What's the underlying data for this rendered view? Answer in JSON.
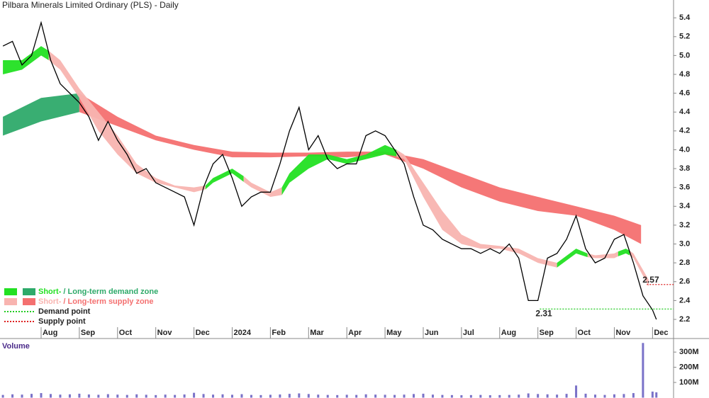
{
  "chart_data": {
    "type": "line",
    "title": "Pilbara Minerals Limited Ordinary (PLS) - Daily",
    "xlim": [
      -0.076,
      17.55
    ],
    "xticks": [
      {
        "value": 1,
        "label": "Aug"
      },
      {
        "value": 2,
        "label": "Sep"
      },
      {
        "value": 3,
        "label": "Oct"
      },
      {
        "value": 4,
        "label": "Nov"
      },
      {
        "value": 5,
        "label": "Dec"
      },
      {
        "value": 6,
        "label": "2024"
      },
      {
        "value": 7,
        "label": "Feb"
      },
      {
        "value": 8,
        "label": "Mar"
      },
      {
        "value": 9,
        "label": "Apr"
      },
      {
        "value": 10,
        "label": "May"
      },
      {
        "value": 11,
        "label": "Jun"
      },
      {
        "value": 12,
        "label": "Jul"
      },
      {
        "value": 13,
        "label": "Aug"
      },
      {
        "value": 14,
        "label": "Sep"
      },
      {
        "value": 15,
        "label": "Oct"
      },
      {
        "value": 16,
        "label": "Nov"
      },
      {
        "value": 17,
        "label": "Dec"
      }
    ],
    "ylim": [
      1.997,
      5.589
    ],
    "yticks": [
      2.2,
      2.4,
      2.6,
      2.8,
      {
        "value": 3,
        "label": "3.0"
      },
      3.2,
      3.4,
      3.6,
      3.8,
      {
        "value": 4,
        "label": "4.0"
      },
      4.2,
      4.4,
      4.6,
      4.8,
      {
        "value": 5,
        "label": "5.0"
      },
      5.2,
      5.4
    ],
    "color": "#000000",
    "x": [
      0,
      0.25,
      0.5,
      0.75,
      1,
      1.25,
      1.5,
      1.75,
      2,
      2.25,
      2.5,
      2.75,
      3,
      3.25,
      3.5,
      3.75,
      4,
      4.25,
      4.5,
      4.75,
      5,
      5.25,
      5.5,
      5.75,
      6,
      6.25,
      6.5,
      6.75,
      7,
      7.25,
      7.5,
      7.75,
      8,
      8.25,
      8.5,
      8.75,
      9,
      9.25,
      9.5,
      9.75,
      10,
      10.25,
      10.5,
      10.75,
      11,
      11.25,
      11.5,
      11.75,
      12,
      12.25,
      12.5,
      12.75,
      13,
      13.25,
      13.5,
      13.75,
      14,
      14.25,
      14.5,
      14.75,
      15,
      15.25,
      15.5,
      15.75,
      16,
      16.25,
      16.5,
      16.75,
      17,
      17.1
    ],
    "close": [
      5.1,
      5.15,
      4.9,
      5.0,
      5.35,
      4.95,
      4.7,
      4.6,
      4.5,
      4.35,
      4.1,
      4.3,
      4.1,
      3.95,
      3.75,
      3.8,
      3.65,
      3.6,
      3.55,
      3.5,
      3.2,
      3.6,
      3.85,
      3.95,
      3.7,
      3.4,
      3.5,
      3.55,
      3.55,
      3.85,
      4.2,
      4.45,
      4.0,
      4.15,
      3.9,
      3.8,
      3.85,
      3.85,
      4.15,
      4.2,
      4.15,
      4.0,
      3.85,
      3.5,
      3.2,
      3.15,
      3.05,
      3.0,
      2.95,
      2.95,
      2.9,
      2.95,
      2.9,
      3.0,
      2.85,
      2.4,
      2.4,
      2.85,
      2.9,
      3.05,
      3.3,
      2.95,
      2.8,
      2.85,
      3.05,
      3.1,
      2.8,
      2.45,
      2.3,
      2.2
    ],
    "zones": [
      {
        "color": "#2eaa6a",
        "x": [
          0,
          1,
          2
        ],
        "upper": [
          4.35,
          4.55,
          4.6
        ],
        "lower": [
          4.15,
          4.3,
          4.4
        ]
      },
      {
        "color": "#f47070",
        "x": [
          2,
          3,
          4,
          5,
          6,
          7,
          8,
          9,
          10,
          11,
          12,
          13,
          14,
          15,
          16,
          16.7
        ],
        "upper": [
          4.6,
          4.35,
          4.15,
          4.05,
          3.98,
          3.97,
          3.97,
          3.98,
          3.98,
          3.9,
          3.75,
          3.6,
          3.5,
          3.4,
          3.3,
          3.2
        ],
        "lower": [
          4.4,
          4.25,
          4.1,
          4.0,
          3.92,
          3.92,
          3.93,
          3.92,
          3.95,
          3.8,
          3.6,
          3.45,
          3.35,
          3.3,
          3.15,
          3.0
        ]
      },
      {
        "color": "#22e022",
        "x": [
          0,
          0.5,
          1,
          1.2
        ],
        "upper": [
          4.95,
          4.95,
          5.1,
          5.05
        ],
        "lower": [
          4.8,
          4.85,
          5.0,
          4.95
        ]
      },
      {
        "color": "#f8b4b0",
        "x": [
          1.2,
          1.5,
          2,
          2.5,
          3,
          3.5,
          4,
          4.5,
          5,
          5.3
        ],
        "upper": [
          5.05,
          4.95,
          4.65,
          4.4,
          4.15,
          3.85,
          3.7,
          3.62,
          3.6,
          3.62
        ],
        "lower": [
          4.95,
          4.85,
          4.55,
          4.2,
          3.95,
          3.75,
          3.65,
          3.6,
          3.55,
          3.58
        ]
      },
      {
        "color": "#22e022",
        "x": [
          5.3,
          5.5,
          6,
          6.3
        ],
        "upper": [
          3.62,
          3.7,
          3.8,
          3.72
        ],
        "lower": [
          3.58,
          3.65,
          3.75,
          3.66
        ]
      },
      {
        "color": "#f8b4b0",
        "x": [
          6.3,
          6.5,
          7,
          7.3
        ],
        "upper": [
          3.72,
          3.65,
          3.55,
          3.6
        ],
        "lower": [
          3.66,
          3.6,
          3.5,
          3.52
        ]
      },
      {
        "color": "#22e022",
        "x": [
          7.3,
          7.5,
          8,
          8.5,
          9,
          9.5,
          10,
          10.3
        ],
        "upper": [
          3.6,
          3.75,
          3.95,
          3.95,
          3.9,
          3.95,
          4.05,
          4.0
        ],
        "lower": [
          3.52,
          3.65,
          3.8,
          3.9,
          3.85,
          3.9,
          3.95,
          3.93
        ]
      },
      {
        "color": "#f8b4b0",
        "x": [
          10.3,
          10.5,
          11,
          11.5,
          12,
          12.5,
          13,
          13.5,
          14,
          14.5
        ],
        "upper": [
          4.0,
          3.95,
          3.65,
          3.35,
          3.1,
          3.0,
          2.98,
          2.95,
          2.85,
          2.8
        ],
        "lower": [
          3.93,
          3.9,
          3.5,
          3.15,
          3.0,
          2.95,
          2.95,
          2.9,
          2.8,
          2.75
        ]
      },
      {
        "color": "#22e022",
        "x": [
          14.5,
          15,
          15.3
        ],
        "upper": [
          2.8,
          2.95,
          2.9
        ],
        "lower": [
          2.75,
          2.9,
          2.86
        ]
      },
      {
        "color": "#f8b4b0",
        "x": [
          15.3,
          15.5,
          16,
          16.1
        ],
        "upper": [
          2.9,
          2.88,
          2.9,
          2.92
        ],
        "lower": [
          2.86,
          2.85,
          2.85,
          2.87
        ]
      },
      {
        "color": "#22e022",
        "x": [
          16.1,
          16.3,
          16.4
        ],
        "upper": [
          2.92,
          2.95,
          2.93
        ],
        "lower": [
          2.87,
          2.9,
          2.88
        ]
      },
      {
        "color": "#f8b4b0",
        "x": [
          16.4,
          16.5,
          16.9
        ],
        "upper": [
          2.93,
          2.9,
          2.62
        ],
        "lower": [
          2.88,
          2.85,
          2.55
        ]
      }
    ],
    "levels": [
      {
        "value": 2.31,
        "from": 14.05,
        "color": "#22cc22"
      },
      {
        "value": 2.57,
        "from": 16.85,
        "color": "#dd2222"
      }
    ],
    "legend": [
      {
        "short": "Short-",
        "long": "/ Long-term demand zone",
        "short_color": "#22e022",
        "long_color": "#2eaa6a"
      },
      {
        "short": "Short-",
        "long": "/ Long-term supply zone",
        "short_color": "#f8b4b0",
        "long_color": "#f47070"
      }
    ],
    "point_legend": [
      {
        "label": "Demand point",
        "color": "#22cc22"
      },
      {
        "label": "Supply point",
        "color": "#dd2222"
      }
    ],
    "volume": {
      "label": "Volume",
      "color": "#7a72c8",
      "ylim": [
        0,
        380000000
      ],
      "yticks": [
        {
          "value": 100000000,
          "label": "100M"
        },
        {
          "value": 200000000,
          "label": "200M"
        },
        {
          "value": 300000000,
          "label": "300M"
        }
      ],
      "values": [
        18000000,
        22000000,
        20000000,
        25000000,
        30000000,
        24000000,
        20000000,
        22000000,
        26000000,
        21000000,
        19000000,
        23000000,
        20000000,
        18000000,
        22000000,
        19000000,
        17000000,
        20000000,
        18000000,
        21000000,
        32000000,
        24000000,
        20000000,
        22000000,
        19000000,
        23000000,
        18000000,
        17000000,
        19000000,
        21000000,
        25000000,
        28000000,
        24000000,
        20000000,
        18000000,
        17000000,
        19000000,
        18000000,
        22000000,
        20000000,
        19000000,
        18000000,
        20000000,
        24000000,
        26000000,
        20000000,
        18000000,
        17000000,
        16000000,
        17000000,
        18000000,
        16000000,
        17000000,
        18000000,
        20000000,
        28000000,
        24000000,
        22000000,
        20000000,
        25000000,
        80000000,
        26000000,
        20000000,
        18000000,
        22000000,
        24000000,
        30000000,
        360000000,
        40000000,
        35000000
      ]
    }
  }
}
